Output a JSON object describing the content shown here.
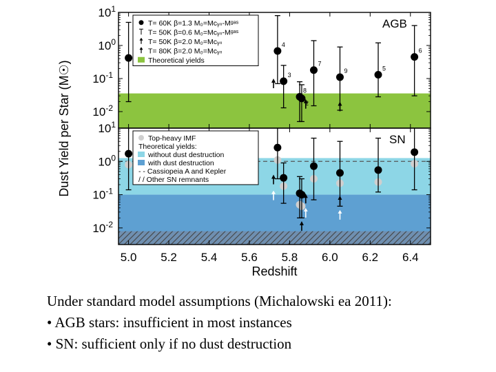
{
  "chart_data": [
    {
      "type": "scatter",
      "panel": "AGB",
      "label": "AGB",
      "xlabel": "Redshift",
      "ylabel": "Dust Yield per Star (M☉)",
      "xlim": [
        4.95,
        6.5
      ],
      "ylim_log10": [
        -2.5,
        1
      ],
      "yscale": "log",
      "x_ticks": [
        "5.0",
        "5.2",
        "5.4",
        "5.6",
        "5.8",
        "6.0",
        "6.2",
        "6.4"
      ],
      "y_ticks": [
        {
          "base": "10",
          "exp": "1",
          "log": 1
        },
        {
          "base": "10",
          "exp": "0",
          "log": 0
        },
        {
          "base": "10",
          "exp": "-1",
          "log": -1
        },
        {
          "base": "10",
          "exp": "-2",
          "log": -2
        }
      ],
      "legend": [
        {
          "symbol": "filled-circle",
          "text": "T= 60K β=1.3 M₀=Mᴄᵧₙ-Mᵍᵃˢ"
        },
        {
          "symbol": "open-circle",
          "text": "T= 50K β=0.6 M₀=Mᴄᵧₙ-Mᵍᵃˢ"
        },
        {
          "symbol": "arrow",
          "text": "T= 50K β=2.0 M₀=Mᴄᵧₙ"
        },
        {
          "symbol": "arrow-small",
          "text": "T= 80K β=2.0 M₀=Mᴄᵧₙ"
        },
        {
          "symbol": "green-box",
          "text": "Theoretical yields"
        }
      ],
      "bands": [
        {
          "name": "Theoretical yields",
          "color": "#8cc43f",
          "log_low": -2.5,
          "log_high": -1.45
        }
      ],
      "points": [
        {
          "id": "1",
          "x": 5.0,
          "y": 0.42,
          "err_low": 0.02,
          "err_high": 5.0
        },
        {
          "id": "4",
          "x": 5.74,
          "y": 0.68,
          "err_low": 0.07,
          "err_high": 8.0
        },
        {
          "id": "3",
          "x": 5.77,
          "y": 0.083,
          "err_low": 0.013,
          "err_high": 0.25
        },
        {
          "id": "8",
          "x": 5.85,
          "y": 0.028,
          "err_low": 0.005,
          "err_high": 0.08
        },
        {
          "id": "2",
          "x": 5.86,
          "y": 0.025,
          "err_low": 0.005,
          "err_high": 0.065
        },
        {
          "id": "7",
          "x": 5.92,
          "y": 0.18,
          "err_low": 0.015,
          "err_high": 1.4
        },
        {
          "id": "9",
          "x": 6.05,
          "y": 0.11,
          "err_low": 0.011,
          "err_high": 0.9
        },
        {
          "id": "5",
          "x": 6.24,
          "y": 0.13,
          "err_low": 0.028,
          "err_high": 1.2
        },
        {
          "id": "6",
          "x": 6.42,
          "y": 0.45,
          "err_low": 0.03,
          "err_high": 4.0
        }
      ],
      "lower_limits": [
        {
          "x": 5.72,
          "y": 0.075
        },
        {
          "x": 5.88,
          "y": 0.018
        },
        {
          "x": 6.05,
          "y": 0.015
        }
      ]
    },
    {
      "type": "scatter",
      "panel": "SN",
      "label": "SN",
      "xlim": [
        4.95,
        6.5
      ],
      "ylim_log10": [
        -2.5,
        1
      ],
      "yscale": "log",
      "y_ticks": [
        {
          "base": "10",
          "exp": "1",
          "log": 1
        },
        {
          "base": "10",
          "exp": "0",
          "log": 0
        },
        {
          "base": "10",
          "exp": "-1",
          "log": -1
        },
        {
          "base": "10",
          "exp": "-2",
          "log": -2
        }
      ],
      "legend": [
        {
          "symbol": "grey-circle",
          "text": "Top-heavy IMF"
        },
        {
          "symbol": "none",
          "text": "Theoretical yields:"
        },
        {
          "symbol": "light-blue-box",
          "text": "without dust destruction"
        },
        {
          "symbol": "blue-box",
          "text": "with dust destruction"
        },
        {
          "symbol": "dashed",
          "text": "- - Cassiopeia A and Kepler"
        },
        {
          "symbol": "hatched",
          "text": "/ / Other SN remnants"
        }
      ],
      "bands": [
        {
          "name": "without dust destruction",
          "color": "#8dd6e6",
          "log_low": -1,
          "log_high": 0.1
        },
        {
          "name": "with dust destruction",
          "color": "#5ea0d2",
          "log_low": -2.5,
          "log_high": -1
        },
        {
          "name": "Other SN remnants",
          "color": "#8f8f8f",
          "log_low": -2.5,
          "log_high": -2.1
        }
      ],
      "cassiopeia_kepler_log": 0,
      "points": [
        {
          "x": 5.0,
          "y": 1.7,
          "err_low": 0.14,
          "err_high": 10.0
        },
        {
          "x": 5.74,
          "y": 2.6,
          "err_low": 0.3,
          "err_high": 20.0
        },
        {
          "x": 5.77,
          "y": 0.32,
          "err_low": 0.055,
          "err_high": 0.9
        },
        {
          "x": 5.85,
          "y": 0.11,
          "err_low": 0.02,
          "err_high": 0.35
        },
        {
          "x": 5.86,
          "y": 0.1,
          "err_low": 0.02,
          "err_high": 0.3
        },
        {
          "x": 5.92,
          "y": 0.72,
          "err_low": 0.07,
          "err_high": 5.0
        },
        {
          "x": 6.05,
          "y": 0.45,
          "err_low": 0.045,
          "err_high": 4.0
        },
        {
          "x": 6.24,
          "y": 0.55,
          "err_low": 0.12,
          "err_high": 5.0
        },
        {
          "x": 6.42,
          "y": 1.9,
          "err_low": 0.14,
          "err_high": 20.0
        }
      ],
      "topheavy_points": [
        {
          "x": 5.0,
          "y": 0.8
        },
        {
          "x": 5.74,
          "y": 1.1
        },
        {
          "x": 5.77,
          "y": 0.18
        },
        {
          "x": 5.85,
          "y": 0.05
        },
        {
          "x": 5.86,
          "y": 0.045
        },
        {
          "x": 5.92,
          "y": 0.3
        },
        {
          "x": 6.05,
          "y": 0.22
        },
        {
          "x": 6.24,
          "y": 0.24
        },
        {
          "x": 6.42,
          "y": 0.85
        }
      ],
      "lower_limits": [
        {
          "x": 5.72,
          "y": 0.3
        },
        {
          "x": 5.88,
          "y": 0.08
        },
        {
          "x": 6.05,
          "y": 0.07
        },
        {
          "x": 5.86,
          "y": 0.012
        }
      ],
      "topheavy_lower_limits": [
        {
          "x": 5.72,
          "y": 0.1
        },
        {
          "x": 5.88,
          "y": 0.03
        },
        {
          "x": 6.05,
          "y": 0.026
        }
      ]
    }
  ],
  "caption": {
    "line1": "Under standard model assumptions (Michalowski ea 2011):",
    "line2": "• AGB stars: insufficient in most instances",
    "line3": "• SN: sufficient only if no dust destruction"
  }
}
